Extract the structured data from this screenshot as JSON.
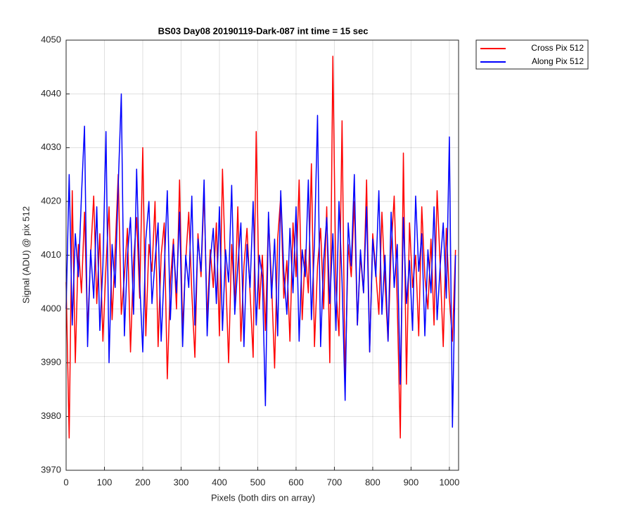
{
  "chart_data": {
    "type": "line",
    "title": "BS03 Day08 20190119-Dark-087 int time = 15 sec",
    "xlabel": "Pixels (both dirs on array)",
    "ylabel": "Signal (ADU) @ pix 512",
    "x": [
      0,
      8,
      16,
      24,
      32,
      40,
      48,
      56,
      64,
      72,
      80,
      88,
      96,
      104,
      112,
      120,
      128,
      136,
      144,
      152,
      160,
      168,
      176,
      184,
      192,
      200,
      208,
      216,
      224,
      232,
      240,
      248,
      256,
      264,
      272,
      280,
      288,
      296,
      304,
      312,
      320,
      328,
      336,
      344,
      352,
      360,
      368,
      376,
      384,
      392,
      400,
      408,
      416,
      424,
      432,
      440,
      448,
      456,
      464,
      472,
      480,
      488,
      496,
      504,
      512,
      520,
      528,
      536,
      544,
      552,
      560,
      568,
      576,
      584,
      592,
      600,
      608,
      616,
      624,
      632,
      640,
      648,
      656,
      664,
      672,
      680,
      688,
      696,
      704,
      712,
      720,
      728,
      736,
      744,
      752,
      760,
      768,
      776,
      784,
      792,
      800,
      808,
      816,
      824,
      832,
      840,
      848,
      856,
      864,
      872,
      880,
      888,
      896,
      904,
      912,
      920,
      928,
      936,
      944,
      952,
      960,
      968,
      976,
      984,
      992,
      1000,
      1008,
      1016
    ],
    "series": [
      {
        "name": "Cross Pix 512",
        "color": "#ff0000",
        "values": [
          4005,
          3976,
          4022,
          3990,
          4012,
          4003,
          4018,
          3996,
          4010,
          4021,
          4001,
          4014,
          3994,
          4008,
          4019,
          3998,
          4011,
          4025,
          3999,
          4006,
          4015,
          3992,
          4009,
          4017,
          4002,
          4030,
          3995,
          4012,
          4007,
          4020,
          3993,
          4010,
          4016,
          3987,
          4005,
          4013,
          4000,
          4024,
          3996,
          4009,
          4018,
          4003,
          3991,
          4014,
          4006,
          4022,
          3998,
          4011,
          4004,
          4016,
          3995,
          4026,
          4007,
          3990,
          4012,
          4001,
          4019,
          3994,
          4008,
          4015,
          4003,
          3991,
          4033,
          4000,
          4010,
          3996,
          4017,
          4005,
          3989,
          4013,
          4021,
          4002,
          4009,
          3994,
          4016,
          4006,
          4024,
          3998,
          4011,
          4003,
          4027,
          3993,
          4008,
          4015,
          4000,
          4019,
          3990,
          4047,
          4004,
          3995,
          4035,
          3986,
          4012,
          4006,
          4020,
          3997,
          4010,
          4003,
          4024,
          3992,
          4014,
          4007,
          3999,
          4018,
          4005,
          3994,
          4011,
          4021,
          4001,
          3976,
          4029,
          3986,
          4016,
          4004,
          4010,
          3995,
          4019,
          4006,
          4000,
          4013,
          3997,
          4022,
          4008,
          3993,
          4015,
          4002,
          3994,
          4011
        ]
      },
      {
        "name": "Along Pix 512",
        "color": "#0000ff",
        "values": [
          4000,
          4025,
          3997,
          4014,
          4006,
          4021,
          4034,
          3993,
          4011,
          4002,
          4019,
          3996,
          4008,
          4033,
          3990,
          4012,
          4004,
          4023,
          4040,
          3995,
          4010,
          4017,
          3999,
          4026,
          4005,
          3992,
          4013,
          4020,
          4001,
          4009,
          4016,
          3994,
          4007,
          4022,
          3998,
          4012,
          4003,
          4018,
          3993,
          4010,
          4004,
          4021,
          3997,
          4013,
          4007,
          4024,
          3995,
          4009,
          4015,
          4001,
          4019,
          3996,
          4011,
          4005,
          4023,
          3999,
          4008,
          4016,
          3993,
          4012,
          4004,
          4020,
          3997,
          4010,
          4006,
          3982,
          4018,
          4002,
          4013,
          3995,
          4022,
          4007,
          3999,
          4015,
          4003,
          4019,
          3994,
          4011,
          4006,
          4024,
          3998,
          4012,
          4036,
          3993,
          4009,
          4017,
          4001,
          4014,
          3996,
          4020,
          4005,
          3983,
          4016,
          4008,
          4025,
          3997,
          4011,
          4003,
          4019,
          3992,
          4013,
          4006,
          4022,
          3999,
          4010,
          3994,
          4018,
          4004,
          4012,
          3986,
          4017,
          4001,
          4009,
          3996,
          4021,
          4007,
          4014,
          3995,
          4011,
          4003,
          4019,
          3998,
          4008,
          4016,
          4002,
          4032,
          3978,
          4010
        ]
      }
    ],
    "xlim": [
      0,
      1024
    ],
    "xticks": [
      0,
      100,
      200,
      300,
      400,
      500,
      600,
      700,
      800,
      900,
      1000
    ],
    "ylim": [
      3970,
      4050
    ],
    "yticks": [
      3970,
      3980,
      3990,
      4000,
      4010,
      4020,
      4030,
      4040,
      4050
    ],
    "grid": true,
    "legend": "northeastoutside"
  }
}
